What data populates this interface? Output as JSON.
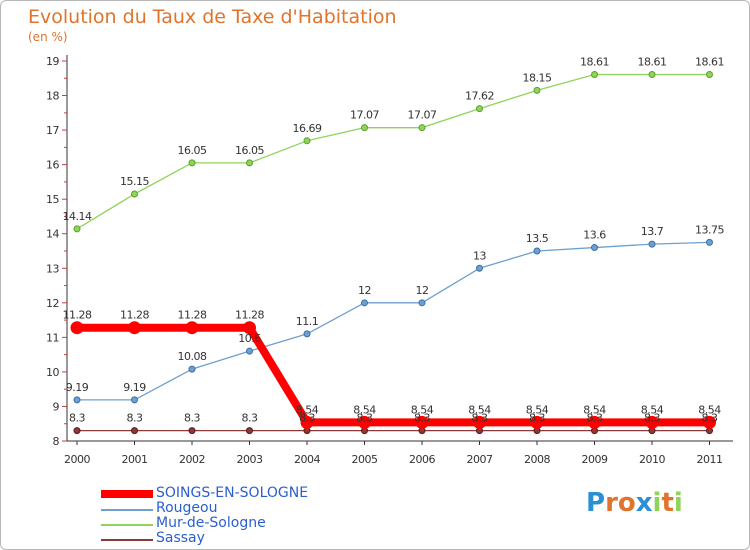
{
  "header": {
    "title": "Evolution du Taux de Taxe d'Habitation",
    "subtitle": "(en %)"
  },
  "chart_data": {
    "type": "line",
    "x": [
      "2000",
      "2001",
      "2002",
      "2003",
      "2004",
      "2005",
      "2006",
      "2007",
      "2008",
      "2009",
      "2010",
      "2011"
    ],
    "ylim": [
      8,
      19
    ],
    "yticks": [
      8,
      9,
      10,
      11,
      12,
      13,
      14,
      15,
      16,
      17,
      18,
      19
    ],
    "grid": false,
    "legend_position": "bottom-left",
    "series": [
      {
        "name": "SOINGS-EN-SOLOGNE",
        "color": "#ff0000",
        "values": [
          11.28,
          11.28,
          11.28,
          11.28,
          8.54,
          8.54,
          8.54,
          8.54,
          8.54,
          8.54,
          8.54,
          8.54
        ],
        "labels": [
          "11.28",
          "11.28",
          "11.28",
          "11.28",
          "8.54",
          "8.54",
          "8.54",
          "8.54",
          "8.54",
          "8.54",
          "8.54",
          "8.54"
        ]
      },
      {
        "name": "Rougeou",
        "color": "#6f9fcf",
        "values": [
          9.19,
          9.19,
          10.08,
          10.6,
          11.1,
          12,
          12,
          13,
          13.5,
          13.6,
          13.7,
          13.75
        ],
        "labels": [
          "9.19",
          "9.19",
          "10.08",
          "10.6",
          "11.1",
          "12",
          "12",
          "13",
          "13.5",
          "13.6",
          "13.7",
          "13.75"
        ]
      },
      {
        "name": "Mur-de-Sologne",
        "color": "#8fd45a",
        "values": [
          14.14,
          15.15,
          16.05,
          16.05,
          16.69,
          17.07,
          17.07,
          17.62,
          18.15,
          18.61,
          18.61,
          18.61
        ],
        "labels": [
          "14.14",
          "15.15",
          "16.05",
          "16.05",
          "16.69",
          "17.07",
          "17.07",
          "17.62",
          "18.15",
          "18.61",
          "18.61",
          "18.61"
        ]
      },
      {
        "name": "Sassay",
        "color": "#8b3a3a",
        "values": [
          8.3,
          8.3,
          8.3,
          8.3,
          8.3,
          8.3,
          8.3,
          8.3,
          8.3,
          8.3,
          8.3,
          8.3
        ],
        "labels": [
          "8.3",
          "8.3",
          "8.3",
          "8.3",
          "8.3",
          "8.3",
          "8.3",
          "8.3",
          "8.3",
          "8.3",
          "8.3",
          "8.3"
        ]
      }
    ]
  },
  "logo": {
    "letters": [
      "P",
      "r",
      "o",
      "x",
      "i",
      "t",
      "i"
    ],
    "colors": [
      "#2b8fd6",
      "#e0742c",
      "#e0742c",
      "#2b8fd6",
      "#8fd45a",
      "#e0742c",
      "#8fd45a"
    ]
  }
}
